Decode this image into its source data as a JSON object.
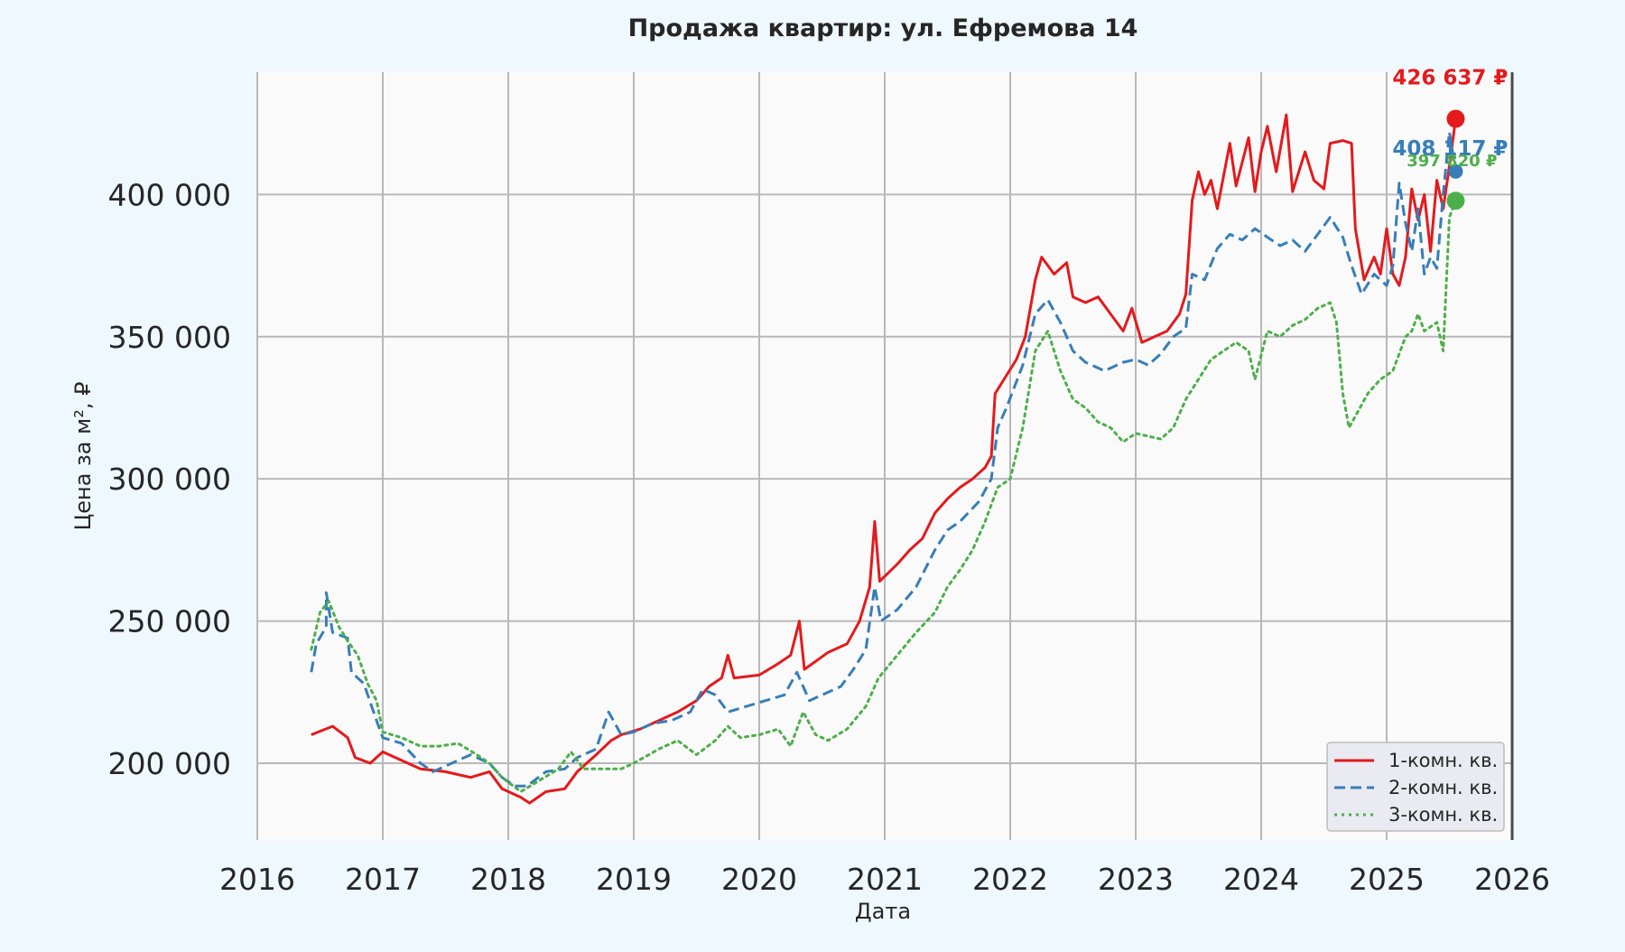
{
  "chart_data": {
    "type": "line",
    "title": "Продажа квартир: ул. Ефремова 14",
    "xlabel": "Дата",
    "ylabel": "Цена за м², ₽",
    "xlim": [
      2016.0,
      2026.0
    ],
    "ylim": [
      173000,
      443000
    ],
    "x_ticks": [
      "2016",
      "2017",
      "2018",
      "2019",
      "2020",
      "2021",
      "2022",
      "2023",
      "2024",
      "2025",
      "2026"
    ],
    "y_ticks": [
      "200 000",
      "250 000",
      "300 000",
      "350 000",
      "400 000"
    ],
    "y_tick_values": [
      200000,
      250000,
      300000,
      350000,
      400000
    ],
    "grid": true,
    "legend_position": "lower-right",
    "colors": {
      "background": "#f0f8ff",
      "plot_background": "#fafafa",
      "grid": "#b8b8b8",
      "text": "#262626"
    },
    "series": [
      {
        "name": "1-комн. кв.",
        "color": "#e41a1c",
        "style": "solid",
        "end_label": "426 637 ₽",
        "end_value": 426637,
        "points": [
          [
            2016.43,
            210000
          ],
          [
            2016.6,
            213000
          ],
          [
            2016.72,
            209000
          ],
          [
            2016.78,
            202000
          ],
          [
            2016.9,
            200000
          ],
          [
            2017.0,
            204000
          ],
          [
            2017.15,
            201000
          ],
          [
            2017.3,
            198000
          ],
          [
            2017.5,
            197000
          ],
          [
            2017.7,
            195000
          ],
          [
            2017.85,
            197000
          ],
          [
            2017.95,
            191000
          ],
          [
            2018.1,
            188000
          ],
          [
            2018.17,
            186000
          ],
          [
            2018.3,
            190000
          ],
          [
            2018.45,
            191000
          ],
          [
            2018.55,
            197000
          ],
          [
            2018.7,
            203000
          ],
          [
            2018.82,
            208000
          ],
          [
            2018.9,
            210000
          ],
          [
            2019.05,
            212000
          ],
          [
            2019.2,
            215000
          ],
          [
            2019.35,
            218000
          ],
          [
            2019.5,
            222000
          ],
          [
            2019.6,
            227000
          ],
          [
            2019.7,
            230000
          ],
          [
            2019.75,
            238000
          ],
          [
            2019.8,
            230000
          ],
          [
            2020.0,
            231000
          ],
          [
            2020.15,
            235000
          ],
          [
            2020.25,
            238000
          ],
          [
            2020.32,
            250000
          ],
          [
            2020.36,
            233000
          ],
          [
            2020.55,
            239000
          ],
          [
            2020.7,
            242000
          ],
          [
            2020.8,
            250000
          ],
          [
            2020.88,
            262000
          ],
          [
            2020.92,
            285000
          ],
          [
            2020.96,
            264000
          ],
          [
            2021.1,
            270000
          ],
          [
            2021.2,
            275000
          ],
          [
            2021.3,
            279000
          ],
          [
            2021.4,
            288000
          ],
          [
            2021.5,
            293000
          ],
          [
            2021.6,
            297000
          ],
          [
            2021.7,
            300000
          ],
          [
            2021.8,
            304000
          ],
          [
            2021.85,
            308000
          ],
          [
            2021.88,
            330000
          ],
          [
            2021.95,
            335000
          ],
          [
            2022.05,
            342000
          ],
          [
            2022.12,
            350000
          ],
          [
            2022.2,
            370000
          ],
          [
            2022.25,
            378000
          ],
          [
            2022.35,
            372000
          ],
          [
            2022.45,
            376000
          ],
          [
            2022.5,
            364000
          ],
          [
            2022.6,
            362000
          ],
          [
            2022.7,
            364000
          ],
          [
            2022.8,
            358000
          ],
          [
            2022.9,
            352000
          ],
          [
            2022.97,
            360000
          ],
          [
            2023.05,
            348000
          ],
          [
            2023.15,
            350000
          ],
          [
            2023.25,
            352000
          ],
          [
            2023.35,
            358000
          ],
          [
            2023.4,
            365000
          ],
          [
            2023.45,
            398000
          ],
          [
            2023.5,
            408000
          ],
          [
            2023.55,
            400000
          ],
          [
            2023.6,
            405000
          ],
          [
            2023.65,
            395000
          ],
          [
            2023.75,
            418000
          ],
          [
            2023.8,
            403000
          ],
          [
            2023.9,
            420000
          ],
          [
            2023.95,
            401000
          ],
          [
            2024.0,
            415000
          ],
          [
            2024.05,
            424000
          ],
          [
            2024.12,
            408000
          ],
          [
            2024.2,
            428000
          ],
          [
            2024.25,
            401000
          ],
          [
            2024.35,
            415000
          ],
          [
            2024.42,
            405000
          ],
          [
            2024.5,
            402000
          ],
          [
            2024.55,
            418000
          ],
          [
            2024.65,
            419000
          ],
          [
            2024.72,
            418000
          ],
          [
            2024.75,
            388000
          ],
          [
            2024.82,
            370000
          ],
          [
            2024.9,
            378000
          ],
          [
            2024.95,
            372000
          ],
          [
            2025.0,
            388000
          ],
          [
            2025.05,
            372000
          ],
          [
            2025.1,
            368000
          ],
          [
            2025.15,
            378000
          ],
          [
            2025.2,
            402000
          ],
          [
            2025.25,
            391000
          ],
          [
            2025.3,
            400000
          ],
          [
            2025.35,
            380000
          ],
          [
            2025.4,
            405000
          ],
          [
            2025.45,
            395000
          ],
          [
            2025.5,
            410000
          ],
          [
            2025.55,
            426637
          ]
        ]
      },
      {
        "name": "2-комн. кв.",
        "color": "#377eb8",
        "style": "dashed",
        "end_label": "408 117 ₽",
        "end_value": 408117,
        "points": [
          [
            2016.43,
            232000
          ],
          [
            2016.47,
            242000
          ],
          [
            2016.55,
            248000
          ],
          [
            2016.55,
            260000
          ],
          [
            2016.6,
            246000
          ],
          [
            2016.72,
            244000
          ],
          [
            2016.75,
            232000
          ],
          [
            2016.85,
            228000
          ],
          [
            2016.95,
            215000
          ],
          [
            2017.0,
            209000
          ],
          [
            2017.15,
            207000
          ],
          [
            2017.3,
            200000
          ],
          [
            2017.4,
            197000
          ],
          [
            2017.55,
            200000
          ],
          [
            2017.7,
            203000
          ],
          [
            2017.85,
            200000
          ],
          [
            2017.95,
            195000
          ],
          [
            2018.05,
            192000
          ],
          [
            2018.15,
            192000
          ],
          [
            2018.3,
            197000
          ],
          [
            2018.45,
            198000
          ],
          [
            2018.55,
            202000
          ],
          [
            2018.7,
            205000
          ],
          [
            2018.8,
            218000
          ],
          [
            2018.9,
            210000
          ],
          [
            2019.0,
            211000
          ],
          [
            2019.15,
            214000
          ],
          [
            2019.3,
            215000
          ],
          [
            2019.45,
            218000
          ],
          [
            2019.55,
            226000
          ],
          [
            2019.65,
            224000
          ],
          [
            2019.75,
            218000
          ],
          [
            2019.9,
            220000
          ],
          [
            2020.05,
            222000
          ],
          [
            2020.2,
            224000
          ],
          [
            2020.3,
            232000
          ],
          [
            2020.4,
            222000
          ],
          [
            2020.5,
            224000
          ],
          [
            2020.65,
            227000
          ],
          [
            2020.75,
            233000
          ],
          [
            2020.85,
            240000
          ],
          [
            2020.92,
            262000
          ],
          [
            2020.97,
            250000
          ],
          [
            2021.1,
            254000
          ],
          [
            2021.25,
            262000
          ],
          [
            2021.4,
            275000
          ],
          [
            2021.5,
            282000
          ],
          [
            2021.6,
            285000
          ],
          [
            2021.75,
            292000
          ],
          [
            2021.85,
            300000
          ],
          [
            2021.9,
            318000
          ],
          [
            2021.97,
            325000
          ],
          [
            2022.1,
            340000
          ],
          [
            2022.2,
            358000
          ],
          [
            2022.3,
            363000
          ],
          [
            2022.4,
            355000
          ],
          [
            2022.5,
            345000
          ],
          [
            2022.6,
            341000
          ],
          [
            2022.75,
            338000
          ],
          [
            2022.9,
            341000
          ],
          [
            2023.0,
            342000
          ],
          [
            2023.1,
            340000
          ],
          [
            2023.2,
            344000
          ],
          [
            2023.3,
            350000
          ],
          [
            2023.4,
            353000
          ],
          [
            2023.45,
            372000
          ],
          [
            2023.55,
            370000
          ],
          [
            2023.65,
            381000
          ],
          [
            2023.75,
            386000
          ],
          [
            2023.85,
            384000
          ],
          [
            2023.95,
            388000
          ],
          [
            2024.05,
            385000
          ],
          [
            2024.15,
            382000
          ],
          [
            2024.25,
            384000
          ],
          [
            2024.35,
            380000
          ],
          [
            2024.45,
            386000
          ],
          [
            2024.55,
            392000
          ],
          [
            2024.65,
            385000
          ],
          [
            2024.72,
            375000
          ],
          [
            2024.8,
            365000
          ],
          [
            2024.9,
            372000
          ],
          [
            2025.0,
            368000
          ],
          [
            2025.05,
            375000
          ],
          [
            2025.1,
            404000
          ],
          [
            2025.15,
            390000
          ],
          [
            2025.2,
            380000
          ],
          [
            2025.25,
            395000
          ],
          [
            2025.3,
            372000
          ],
          [
            2025.35,
            378000
          ],
          [
            2025.4,
            374000
          ],
          [
            2025.45,
            400000
          ],
          [
            2025.5,
            422000
          ],
          [
            2025.55,
            408117
          ]
        ]
      },
      {
        "name": "3-комн. кв.",
        "color": "#4daf4a",
        "style": "dotted",
        "end_label": "397 820 ₽",
        "end_value": 397820,
        "points": [
          [
            2016.43,
            240000
          ],
          [
            2016.5,
            253000
          ],
          [
            2016.57,
            257000
          ],
          [
            2016.65,
            248000
          ],
          [
            2016.72,
            243000
          ],
          [
            2016.8,
            238000
          ],
          [
            2016.88,
            228000
          ],
          [
            2016.95,
            222000
          ],
          [
            2017.0,
            211000
          ],
          [
            2017.15,
            209000
          ],
          [
            2017.3,
            206000
          ],
          [
            2017.45,
            206000
          ],
          [
            2017.6,
            207000
          ],
          [
            2017.75,
            203000
          ],
          [
            2017.85,
            200000
          ],
          [
            2017.95,
            195000
          ],
          [
            2018.1,
            190000
          ],
          [
            2018.25,
            194000
          ],
          [
            2018.4,
            198000
          ],
          [
            2018.5,
            204000
          ],
          [
            2018.6,
            198000
          ],
          [
            2018.75,
            198000
          ],
          [
            2018.9,
            198000
          ],
          [
            2019.0,
            200000
          ],
          [
            2019.2,
            205000
          ],
          [
            2019.35,
            208000
          ],
          [
            2019.5,
            203000
          ],
          [
            2019.65,
            208000
          ],
          [
            2019.75,
            213000
          ],
          [
            2019.85,
            209000
          ],
          [
            2020.0,
            210000
          ],
          [
            2020.15,
            212000
          ],
          [
            2020.25,
            206000
          ],
          [
            2020.35,
            218000
          ],
          [
            2020.45,
            210000
          ],
          [
            2020.55,
            208000
          ],
          [
            2020.7,
            212000
          ],
          [
            2020.85,
            220000
          ],
          [
            2020.95,
            230000
          ],
          [
            2021.1,
            238000
          ],
          [
            2021.25,
            246000
          ],
          [
            2021.4,
            253000
          ],
          [
            2021.5,
            262000
          ],
          [
            2021.6,
            268000
          ],
          [
            2021.7,
            275000
          ],
          [
            2021.8,
            285000
          ],
          [
            2021.9,
            297000
          ],
          [
            2022.0,
            300000
          ],
          [
            2022.1,
            318000
          ],
          [
            2022.2,
            345000
          ],
          [
            2022.3,
            352000
          ],
          [
            2022.4,
            338000
          ],
          [
            2022.5,
            328000
          ],
          [
            2022.6,
            325000
          ],
          [
            2022.7,
            320000
          ],
          [
            2022.8,
            318000
          ],
          [
            2022.9,
            313000
          ],
          [
            2023.0,
            316000
          ],
          [
            2023.1,
            315000
          ],
          [
            2023.2,
            314000
          ],
          [
            2023.3,
            318000
          ],
          [
            2023.4,
            328000
          ],
          [
            2023.5,
            335000
          ],
          [
            2023.6,
            342000
          ],
          [
            2023.7,
            345000
          ],
          [
            2023.8,
            348000
          ],
          [
            2023.9,
            345000
          ],
          [
            2023.95,
            335000
          ],
          [
            2024.05,
            352000
          ],
          [
            2024.15,
            350000
          ],
          [
            2024.25,
            354000
          ],
          [
            2024.35,
            356000
          ],
          [
            2024.45,
            360000
          ],
          [
            2024.55,
            362000
          ],
          [
            2024.6,
            355000
          ],
          [
            2024.65,
            330000
          ],
          [
            2024.7,
            318000
          ],
          [
            2024.75,
            322000
          ],
          [
            2024.85,
            330000
          ],
          [
            2024.95,
            335000
          ],
          [
            2025.05,
            338000
          ],
          [
            2025.15,
            350000
          ],
          [
            2025.2,
            352000
          ],
          [
            2025.25,
            358000
          ],
          [
            2025.3,
            352000
          ],
          [
            2025.4,
            355000
          ],
          [
            2025.45,
            345000
          ],
          [
            2025.5,
            392000
          ],
          [
            2025.55,
            397820
          ]
        ]
      }
    ]
  }
}
